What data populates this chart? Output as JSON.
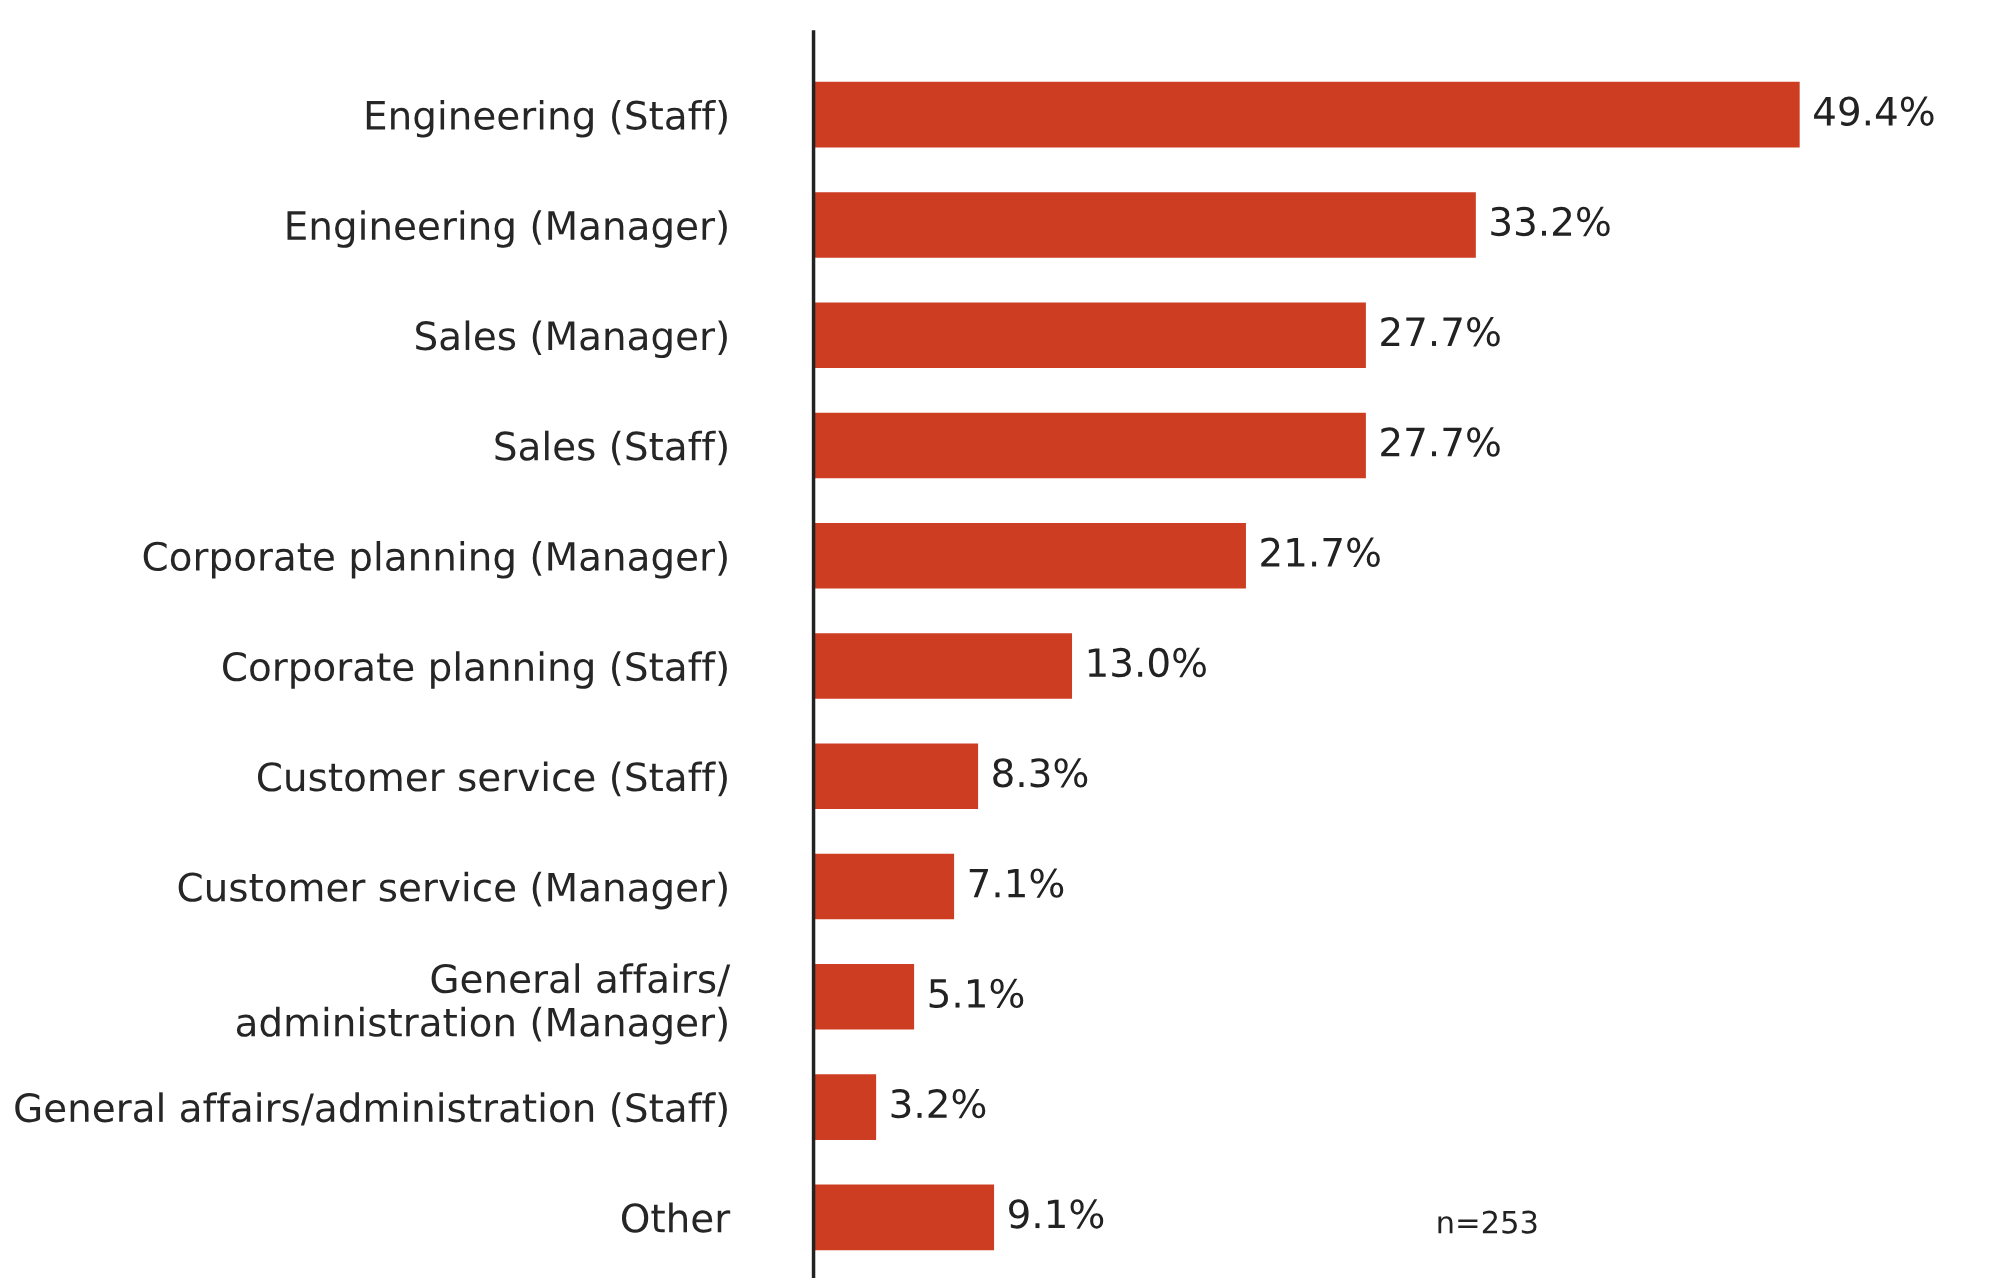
{
  "chart_data": {
    "type": "bar",
    "orientation": "horizontal",
    "categories": [
      "Engineering (Staff)",
      "Engineering (Manager)",
      "Sales (Manager)",
      "Sales (Staff)",
      "Corporate planning (Manager)",
      "Corporate planning (Staff)",
      "Customer service (Staff)",
      "Customer service (Manager)",
      "General affairs/\nadministration (Manager)",
      "General affairs/administration (Staff)",
      "Other"
    ],
    "values": [
      49.4,
      33.2,
      27.7,
      27.7,
      21.7,
      13.0,
      8.3,
      7.1,
      5.1,
      3.2,
      9.1
    ],
    "value_labels": [
      "49.4%",
      "33.2%",
      "27.7%",
      "27.7%",
      "21.7%",
      "13.0%",
      "8.3%",
      "7.1%",
      "5.1%",
      "3.2%",
      "9.1%"
    ],
    "color": "#cc3d22",
    "annotations": [
      "n=253"
    ],
    "grid": false,
    "legend": false,
    "tick_labels": "y"
  }
}
